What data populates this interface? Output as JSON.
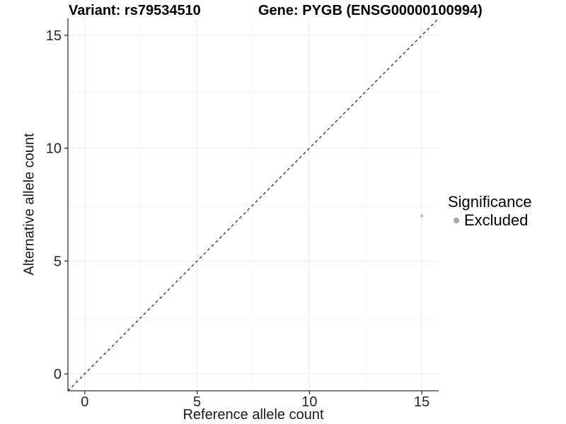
{
  "header": {
    "title_left": "Variant: rs79534510",
    "title_right": "Gene: PYGB (ENSG00000100994)"
  },
  "chart_data": {
    "type": "scatter",
    "title_left": "Variant: rs79534510",
    "title_right": "Gene: PYGB (ENSG00000100994)",
    "xlabel": "Reference allele count",
    "ylabel": "Alternative allele count",
    "xlim": [
      -0.75,
      15.75
    ],
    "ylim": [
      -0.75,
      15.75
    ],
    "major_ticks": [
      0,
      5,
      10,
      15
    ],
    "minor_ticks": [
      2.5,
      7.5,
      12.5
    ],
    "grid": "on",
    "series": [
      {
        "name": "Excluded",
        "points": [
          {
            "x": 15,
            "y": 7
          }
        ],
        "color": "#bdbdbd"
      }
    ],
    "reference_line": {
      "type": "identity",
      "style": "dashed",
      "from": [
        -0.75,
        -0.75
      ],
      "to": [
        15.75,
        15.75
      ],
      "color": "#1a1a1a"
    },
    "legend": {
      "position": "right",
      "title": "Significance",
      "items": [
        {
          "label": "Excluded",
          "color": "#a6a6a6"
        }
      ]
    },
    "colors": {
      "grid_major": "#ebebeb",
      "grid_minor": "#f4f4f4",
      "axis_line": "#333333",
      "tick_mark": "#333333",
      "tick_label": "#262626",
      "point": "#bdbdbd",
      "legend_dot": "#a6a6a6",
      "background": "#ffffff"
    }
  }
}
